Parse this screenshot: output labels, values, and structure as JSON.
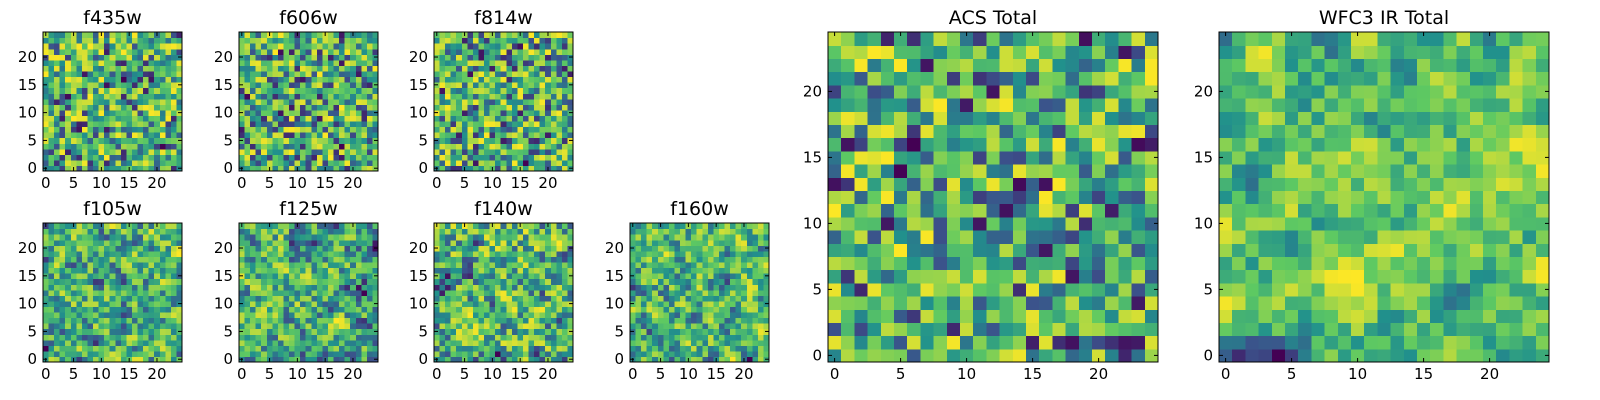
{
  "chart_data": [
    {
      "type": "heatmap",
      "title": "f435w",
      "grid_size": 25,
      "seed": 11,
      "smooth": 0,
      "xticks": [
        "0",
        "5",
        "10",
        "15",
        "20"
      ],
      "yticks": [
        "0",
        "5",
        "10",
        "15",
        "20"
      ]
    },
    {
      "type": "heatmap",
      "title": "f606w",
      "grid_size": 25,
      "seed": 23,
      "smooth": 0,
      "xticks": [
        "0",
        "5",
        "10",
        "15",
        "20"
      ],
      "yticks": [
        "0",
        "5",
        "10",
        "15",
        "20"
      ]
    },
    {
      "type": "heatmap",
      "title": "f814w",
      "grid_size": 25,
      "seed": 37,
      "smooth": 0,
      "xticks": [
        "0",
        "5",
        "10",
        "15",
        "20"
      ],
      "yticks": [
        "0",
        "5",
        "10",
        "15",
        "20"
      ]
    },
    {
      "type": "heatmap",
      "title": "f105w",
      "grid_size": 25,
      "seed": 41,
      "smooth": 1,
      "xticks": [
        "0",
        "5",
        "10",
        "15",
        "20"
      ],
      "yticks": [
        "0",
        "5",
        "10",
        "15",
        "20"
      ]
    },
    {
      "type": "heatmap",
      "title": "f125w",
      "grid_size": 25,
      "seed": 53,
      "smooth": 1,
      "xticks": [
        "0",
        "5",
        "10",
        "15",
        "20"
      ],
      "yticks": [
        "0",
        "5",
        "10",
        "15",
        "20"
      ]
    },
    {
      "type": "heatmap",
      "title": "f140w",
      "grid_size": 25,
      "seed": 67,
      "smooth": 1,
      "xticks": [
        "0",
        "5",
        "10",
        "15",
        "20"
      ],
      "yticks": [
        "0",
        "5",
        "10",
        "15",
        "20"
      ]
    },
    {
      "type": "heatmap",
      "title": "f160w",
      "grid_size": 25,
      "seed": 79,
      "smooth": 1,
      "xticks": [
        "0",
        "5",
        "10",
        "15",
        "20"
      ],
      "yticks": [
        "0",
        "5",
        "10",
        "15",
        "20"
      ]
    },
    {
      "type": "heatmap",
      "title": "ACS Total",
      "grid_size": 25,
      "seed": 83,
      "smooth": 0,
      "xticks": [
        "0",
        "5",
        "10",
        "15",
        "20"
      ],
      "yticks": [
        "0",
        "5",
        "10",
        "15",
        "20"
      ]
    },
    {
      "type": "heatmap",
      "title": "WFC3 IR Total",
      "grid_size": 25,
      "seed": 97,
      "smooth": 2,
      "xticks": [
        "0",
        "5",
        "10",
        "15",
        "20"
      ],
      "yticks": [
        "0",
        "5",
        "10",
        "15",
        "20"
      ]
    }
  ],
  "colormap": [
    "#440154",
    "#3b528b",
    "#21918c",
    "#5ec962",
    "#fde725"
  ]
}
